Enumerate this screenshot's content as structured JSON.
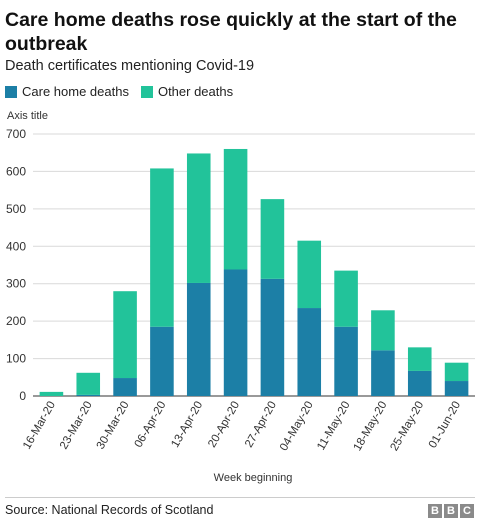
{
  "title": "Care home deaths rose quickly at the start of the outbreak",
  "subtitle": "Death certificates mentioning Covid-19",
  "legend": [
    {
      "label": "Care home deaths",
      "color": "#1c7fa6"
    },
    {
      "label": "Other deaths",
      "color": "#22c39a"
    }
  ],
  "axis_title": "Axis title",
  "xlabel": "Week beginning",
  "source": "Source: National Records of Scotland",
  "logo": [
    "B",
    "B",
    "C"
  ],
  "chart_data": {
    "type": "bar",
    "stacked": true,
    "categories": [
      "16-Mar-20",
      "23-Mar-20",
      "30-Mar-20",
      "06-Apr-20",
      "13-Apr-20",
      "20-Apr-20",
      "27-Apr-20",
      "04-May-20",
      "11-May-20",
      "18-May-20",
      "25-May-20",
      "01-Jun-20"
    ],
    "series": [
      {
        "name": "Care home deaths",
        "color": "#1c7fa6",
        "values": [
          0,
          3,
          48,
          185,
          302,
          338,
          313,
          235,
          185,
          122,
          67,
          40
        ]
      },
      {
        "name": "Other deaths",
        "color": "#22c39a",
        "values": [
          11,
          59,
          232,
          423,
          346,
          322,
          213,
          180,
          150,
          107,
          63,
          49
        ]
      }
    ],
    "xlabel": "Week beginning",
    "ylabel": "Axis title",
    "ylim": [
      0,
      700
    ],
    "yticks": [
      0,
      100,
      200,
      300,
      400,
      500,
      600,
      700
    ],
    "grid": true,
    "legend_position": "top-left"
  }
}
